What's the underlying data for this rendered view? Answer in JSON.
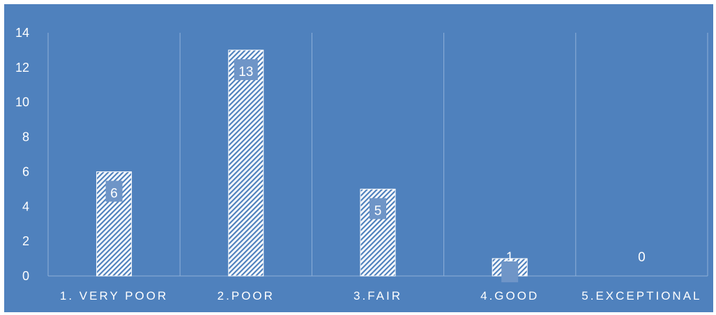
{
  "chart_data": {
    "type": "bar",
    "categories": [
      "1. VERY POOR",
      "2.POOR",
      "3.FAIR",
      "4.GOOD",
      "5.EXCEPTIONAL"
    ],
    "values": [
      6,
      13,
      5,
      1,
      0
    ],
    "data_labels": [
      "6",
      "13",
      "5",
      "1",
      "0"
    ],
    "y_ticks": [
      "0",
      "2",
      "4",
      "6",
      "8",
      "10",
      "12",
      "14"
    ],
    "ylim": [
      0,
      14
    ],
    "title": "",
    "xlabel": "",
    "ylabel": "",
    "grid": "vertical category separators",
    "legend": "none",
    "colors": {
      "background": "#4f81bd",
      "bar_fill": "#ffffff",
      "bar_hatch": "#4f81bd",
      "label_box": "#6f95c7",
      "text": "#ffffff",
      "gridline": "#8fb0d8"
    }
  }
}
